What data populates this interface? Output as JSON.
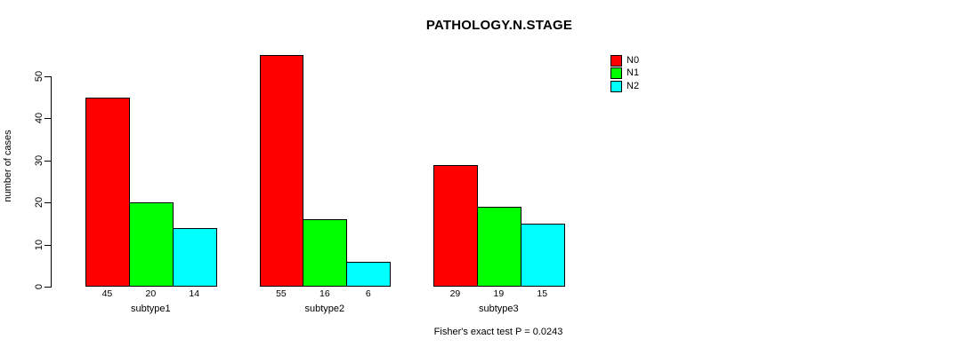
{
  "chart_data": {
    "type": "bar",
    "title": "PATHOLOGY.N.STAGE",
    "categories": [
      "subtype1",
      "subtype2",
      "subtype3"
    ],
    "series": [
      {
        "name": "N0",
        "color": "#ff0000",
        "values": [
          45,
          55,
          29
        ]
      },
      {
        "name": "N1",
        "color": "#00ff00",
        "values": [
          20,
          16,
          19
        ]
      },
      {
        "name": "N2",
        "color": "#00ffff",
        "values": [
          14,
          6,
          15
        ]
      }
    ],
    "xlabel": "",
    "ylabel": "number of cases",
    "ylim": [
      0,
      55
    ],
    "yticks": [
      0,
      10,
      20,
      30,
      40,
      50
    ],
    "grid": false,
    "bar_labels_shown": true,
    "bar_border_color": "#000000",
    "legend_position": "top-right",
    "legend_entries": [
      "N0",
      "N1",
      "N2"
    ],
    "annotation": "Fisher's exact test P = 0.0243"
  }
}
